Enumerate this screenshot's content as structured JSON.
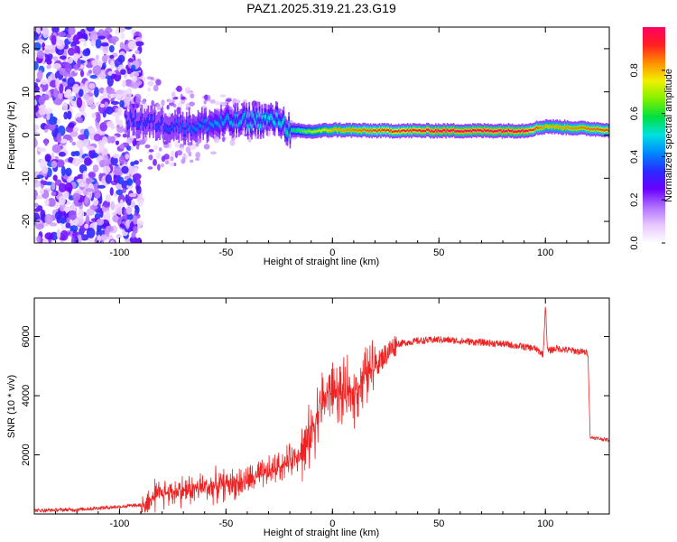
{
  "title": "PAZ1.2025.319.21.23.G19",
  "colors": {
    "snr_line": "#ee2222",
    "axis": "#000000",
    "colormap": [
      "#ffffff",
      "#e8c8ff",
      "#b070ff",
      "#6a00ff",
      "#2a2aff",
      "#0088ff",
      "#00e0e0",
      "#00e040",
      "#80f000",
      "#f0f000",
      "#ff9000",
      "#ff2020",
      "#ff0060"
    ]
  },
  "chart_data": [
    {
      "type": "heatmap",
      "name": "spectrogram",
      "xlabel": "Height of straight line (km)",
      "ylabel": "Frequency (Hz)",
      "xlim": [
        -140,
        130
      ],
      "ylim": [
        -25,
        25
      ],
      "xticks": [
        -100,
        -50,
        0,
        50,
        100
      ],
      "yticks": [
        -20,
        -10,
        0,
        10,
        20
      ],
      "colorbar": {
        "label": "Normalized spectral amplitude",
        "range": [
          0,
          1
        ],
        "ticks": [
          "0.0",
          "0.2",
          "0.4",
          "0.6",
          "0.8"
        ]
      },
      "ridge": {
        "description_points": [
          {
            "x": -95,
            "freq": 3.5,
            "amp": 0.35
          },
          {
            "x": -80,
            "freq": 2.5,
            "amp": 0.35
          },
          {
            "x": -65,
            "freq": 2.0,
            "amp": 0.4
          },
          {
            "x": -50,
            "freq": 3.0,
            "amp": 0.45
          },
          {
            "x": -35,
            "freq": 3.5,
            "amp": 0.5
          },
          {
            "x": -25,
            "freq": 3.5,
            "amp": 0.5
          },
          {
            "x": -20,
            "freq": 1.0,
            "amp": 0.55
          },
          {
            "x": -10,
            "freq": 0.8,
            "amp": 0.7
          },
          {
            "x": 0,
            "freq": 1.2,
            "amp": 0.8
          },
          {
            "x": 20,
            "freq": 1.0,
            "amp": 0.9
          },
          {
            "x": 50,
            "freq": 1.0,
            "amp": 1.0
          },
          {
            "x": 90,
            "freq": 1.0,
            "amp": 1.0
          },
          {
            "x": 100,
            "freq": 2.0,
            "amp": 0.8
          },
          {
            "x": 130,
            "freq": 1.2,
            "amp": 0.9
          }
        ]
      }
    },
    {
      "type": "line",
      "name": "snr",
      "xlabel": "Height of straight line (km)",
      "ylabel": "SNR (10 * v/v)",
      "xlim": [
        -140,
        130
      ],
      "ylim": [
        0,
        7300
      ],
      "xticks": [
        -100,
        -50,
        0,
        50,
        100
      ],
      "yticks": [
        2000,
        4000,
        6000
      ],
      "series": [
        {
          "x": [
            -140,
            -120,
            -100,
            -90,
            -85,
            -80,
            -70,
            -60,
            -50,
            -40,
            -30,
            -20,
            -12,
            -8,
            -5,
            0,
            5,
            10,
            15,
            20,
            25,
            30,
            40,
            50,
            60,
            70,
            80,
            90,
            95,
            99,
            100,
            101,
            105,
            110,
            115,
            120,
            121,
            125,
            130
          ],
          "values": [
            120,
            150,
            250,
            300,
            500,
            700,
            800,
            900,
            1000,
            1100,
            1400,
            1800,
            2300,
            3200,
            3800,
            4200,
            4000,
            4100,
            4600,
            5000,
            5400,
            5750,
            5850,
            5900,
            5850,
            5800,
            5750,
            5650,
            5600,
            5400,
            7100,
            5500,
            5600,
            5550,
            5500,
            5450,
            2600,
            2550,
            2500
          ]
        }
      ]
    }
  ]
}
